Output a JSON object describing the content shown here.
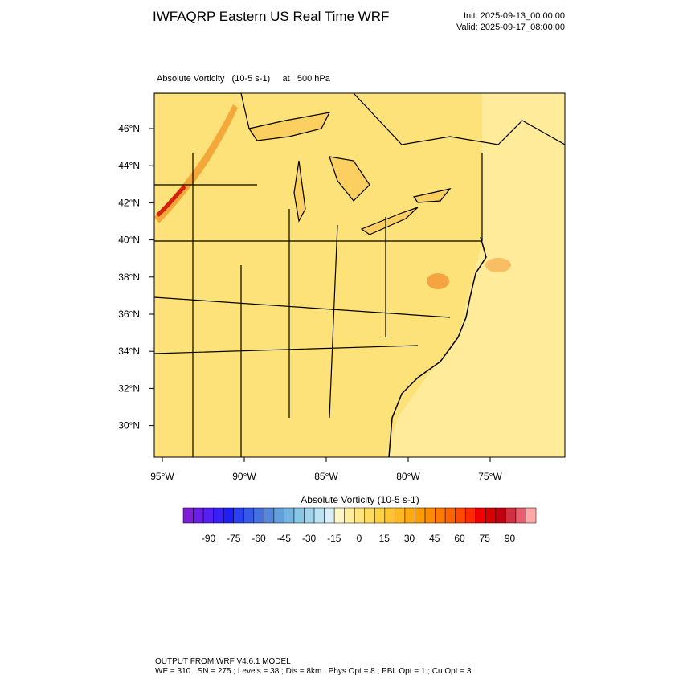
{
  "header": {
    "title": "IWFAQRP Eastern US Real Time WRF",
    "init": "Init: 2025-09-13_00:00:00",
    "valid": "Valid: 2025-09-17_08:00:00"
  },
  "map": {
    "subtitle": "Absolute Vorticity   (10-5 s-1)     at   500 hPa",
    "lat_labels": [
      "46°N",
      "44°N",
      "42°N",
      "40°N",
      "38°N",
      "36°N",
      "34°N",
      "32°N",
      "30°N"
    ],
    "lon_labels": [
      "95°W",
      "90°W",
      "85°W",
      "80°W",
      "75°W"
    ]
  },
  "colorbar": {
    "title": "Absolute Vorticity  (10-5 s-1)",
    "ticks": [
      -90,
      -75,
      -60,
      -45,
      -30,
      -15,
      0,
      15,
      30,
      45,
      60,
      75,
      90
    ],
    "colors": [
      "#7d1fd6",
      "#6a1ee6",
      "#5520f2",
      "#3a20f5",
      "#1f1ff5",
      "#2b40ee",
      "#3858e6",
      "#4670e0",
      "#5488dc",
      "#62a0dc",
      "#74b4e0",
      "#88c6e6",
      "#a0d4ec",
      "#bde2f2",
      "#d8eef8",
      "#fff6c8",
      "#ffeea0",
      "#ffe680",
      "#ffdc60",
      "#ffd040",
      "#ffc430",
      "#ffb820",
      "#ffaa10",
      "#ff9c00",
      "#ff8c00",
      "#ff7a00",
      "#ff6400",
      "#ff4a00",
      "#ff2a00",
      "#f00000",
      "#d80000",
      "#c00010",
      "#d03040",
      "#e86070",
      "#ffa8a8"
    ]
  },
  "footer": {
    "line1": "OUTPUT FROM WRF V4.6.1 MODEL",
    "line2": "WE = 310 ; SN = 275 ; Levels = 38 ; Dis = 8km ; Phys Opt = 8 ; PBL Opt = 1 ; Cu Opt = 3"
  }
}
